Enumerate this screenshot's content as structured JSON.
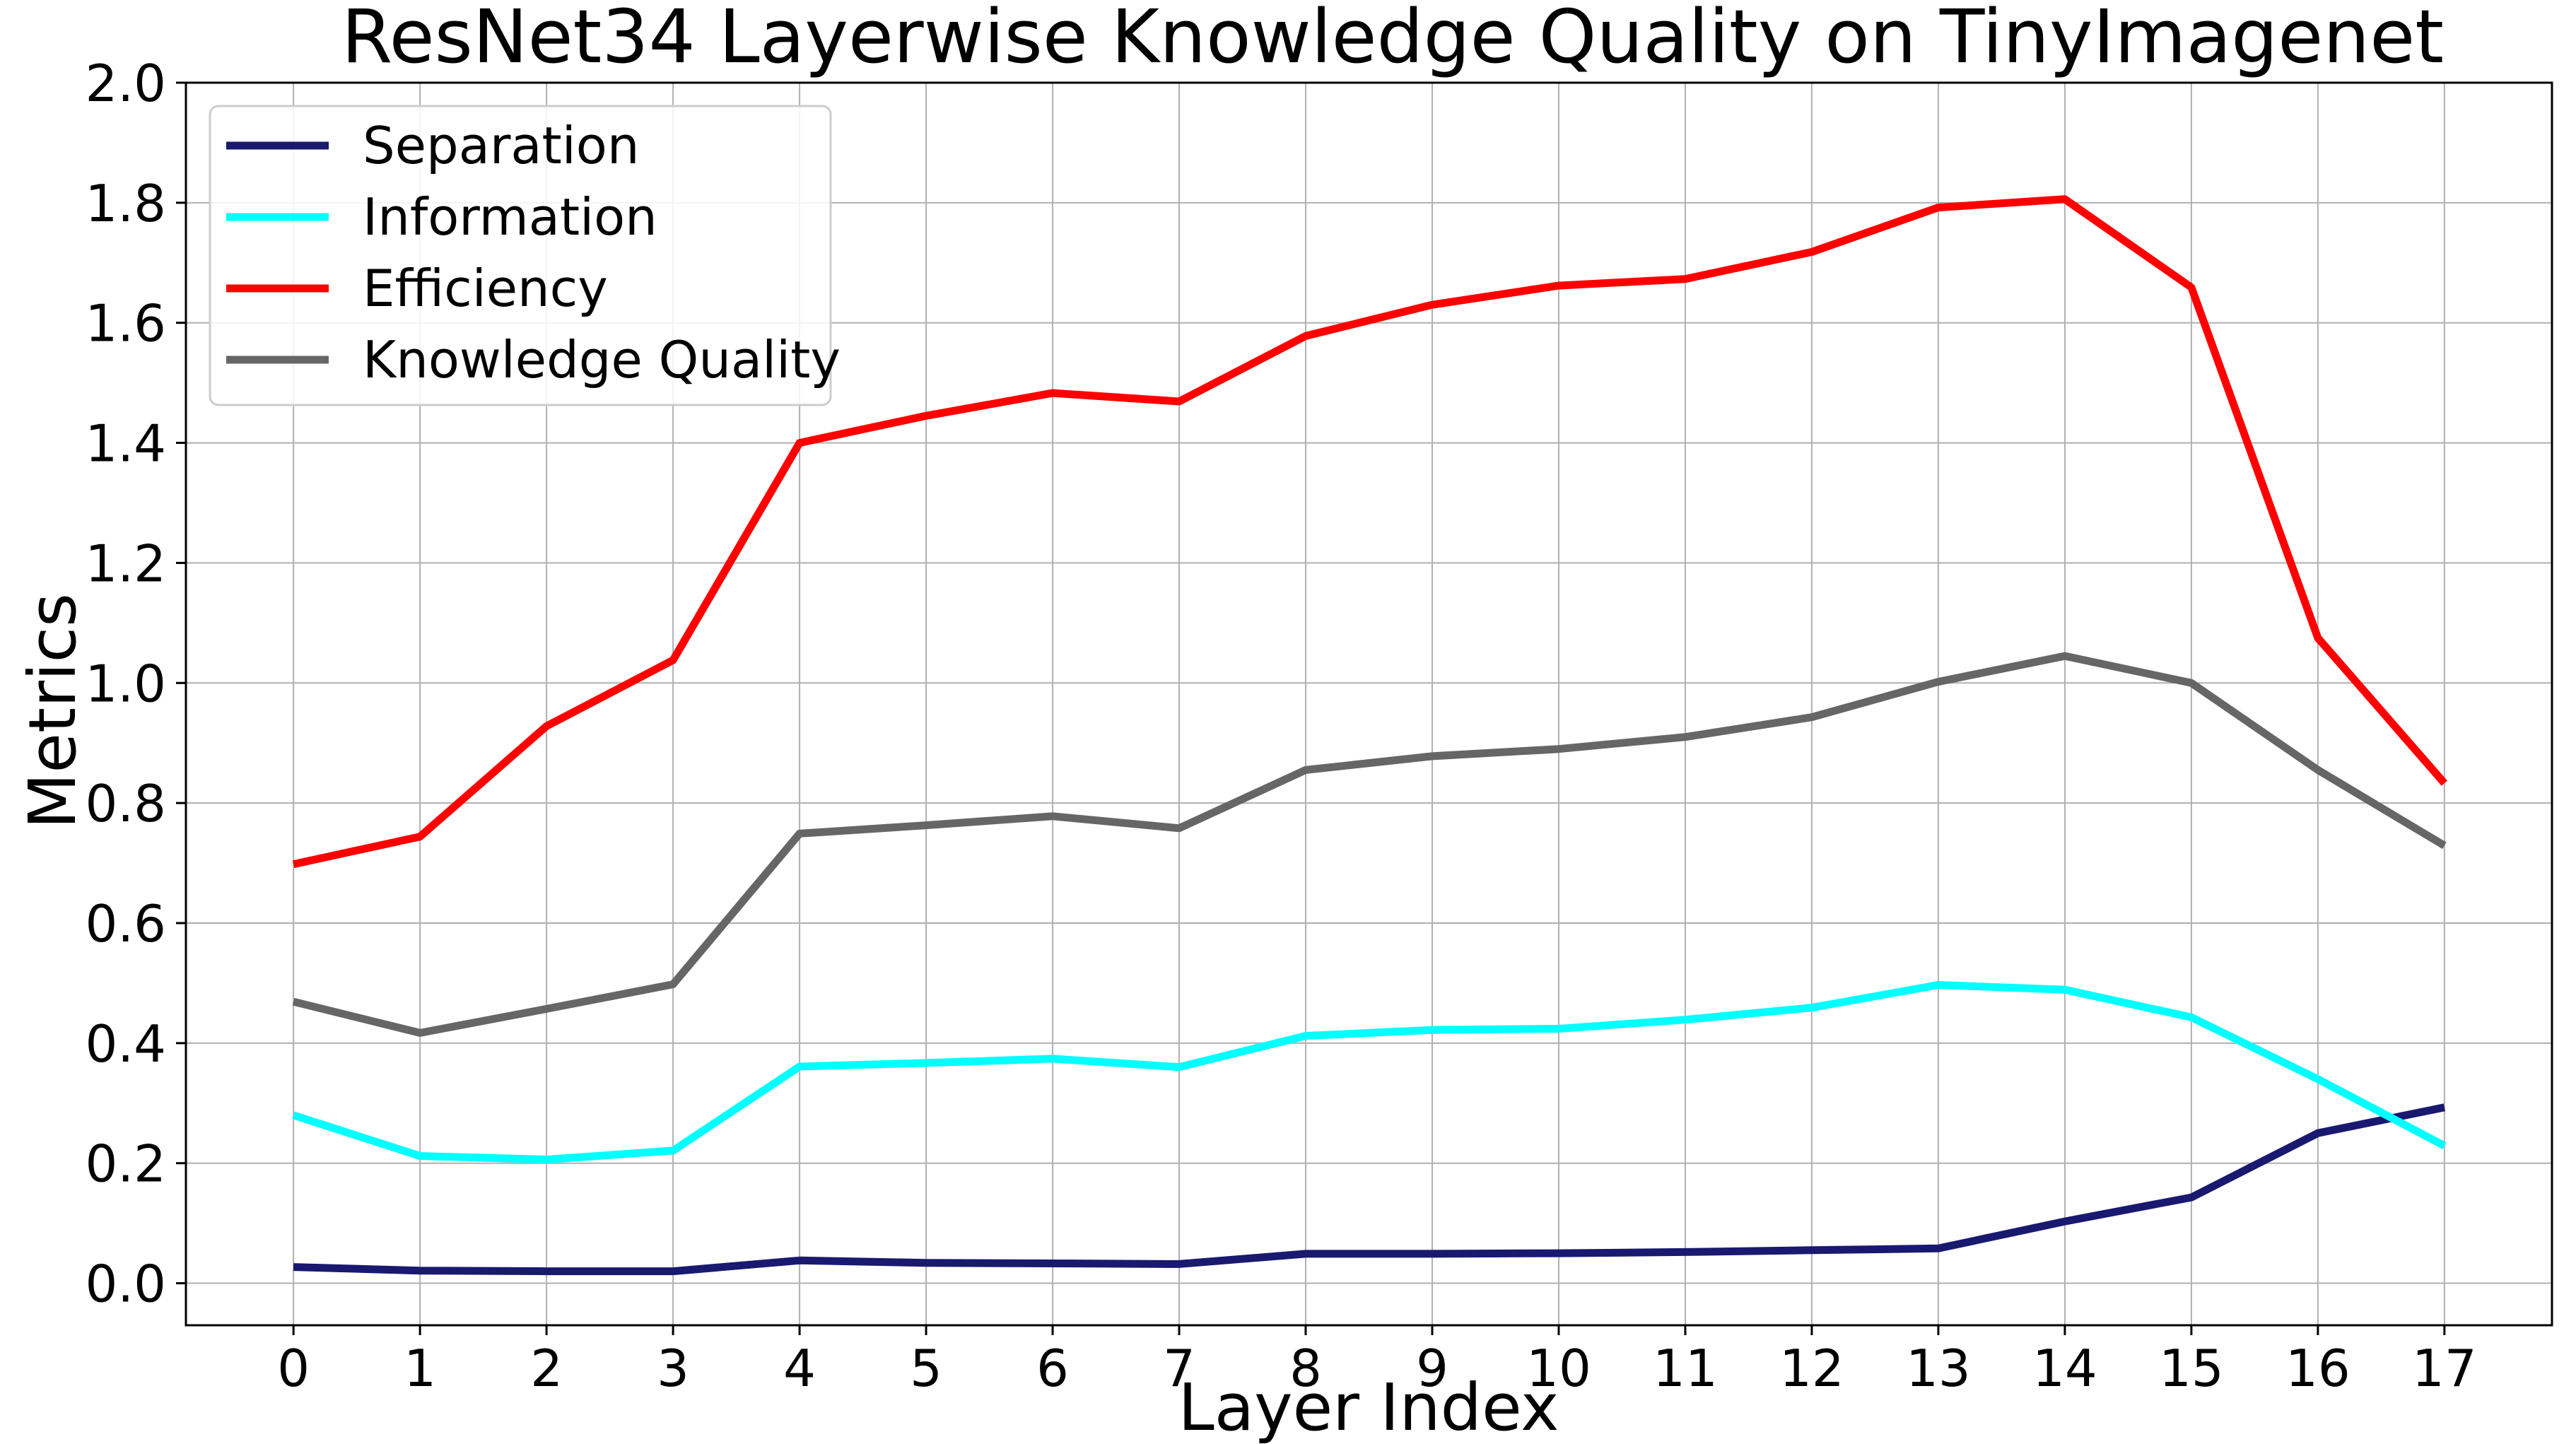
{
  "chart_data": {
    "type": "line",
    "title": "ResNet34 Layerwise Knowledge Quality on TinyImagenet",
    "xlabel": "Layer Index",
    "ylabel": "Metrics",
    "x": [
      0,
      1,
      2,
      3,
      4,
      5,
      6,
      7,
      8,
      9,
      10,
      11,
      12,
      13,
      14,
      15,
      16,
      17
    ],
    "xlim": [
      -0.85,
      17.85
    ],
    "ylim": [
      -0.07,
      2.0
    ],
    "xticks": [
      "0",
      "1",
      "2",
      "3",
      "4",
      "5",
      "6",
      "7",
      "8",
      "9",
      "10",
      "11",
      "12",
      "13",
      "14",
      "15",
      "16",
      "17"
    ],
    "yticks": [
      "0.0",
      "0.2",
      "0.4",
      "0.6",
      "0.8",
      "1.0",
      "1.2",
      "1.4",
      "1.6",
      "1.8",
      "2.0"
    ],
    "grid": true,
    "legend_position": "top-left",
    "series": [
      {
        "name": "Separation",
        "color": "#191970",
        "values": [
          0.027,
          0.021,
          0.02,
          0.02,
          0.038,
          0.034,
          0.033,
          0.032,
          0.049,
          0.049,
          0.05,
          0.052,
          0.055,
          0.058,
          0.103,
          0.143,
          0.25,
          0.293
        ]
      },
      {
        "name": "Information",
        "color": "#00ffff",
        "values": [
          0.28,
          0.212,
          0.206,
          0.221,
          0.361,
          0.367,
          0.374,
          0.36,
          0.412,
          0.422,
          0.424,
          0.439,
          0.459,
          0.497,
          0.489,
          0.443,
          0.34,
          0.229
        ]
      },
      {
        "name": "Efficiency",
        "color": "#ff0000",
        "values": [
          0.698,
          0.744,
          0.928,
          1.038,
          1.4,
          1.445,
          1.483,
          1.469,
          1.578,
          1.63,
          1.662,
          1.673,
          1.718,
          1.792,
          1.806,
          1.659,
          1.075,
          0.833
        ]
      },
      {
        "name": "Knowledge Quality",
        "color": "#666666",
        "values": [
          0.469,
          0.417,
          0.457,
          0.498,
          0.749,
          0.763,
          0.778,
          0.758,
          0.855,
          0.878,
          0.89,
          0.91,
          0.943,
          1.002,
          1.045,
          1.0,
          0.855,
          0.729
        ]
      }
    ]
  }
}
